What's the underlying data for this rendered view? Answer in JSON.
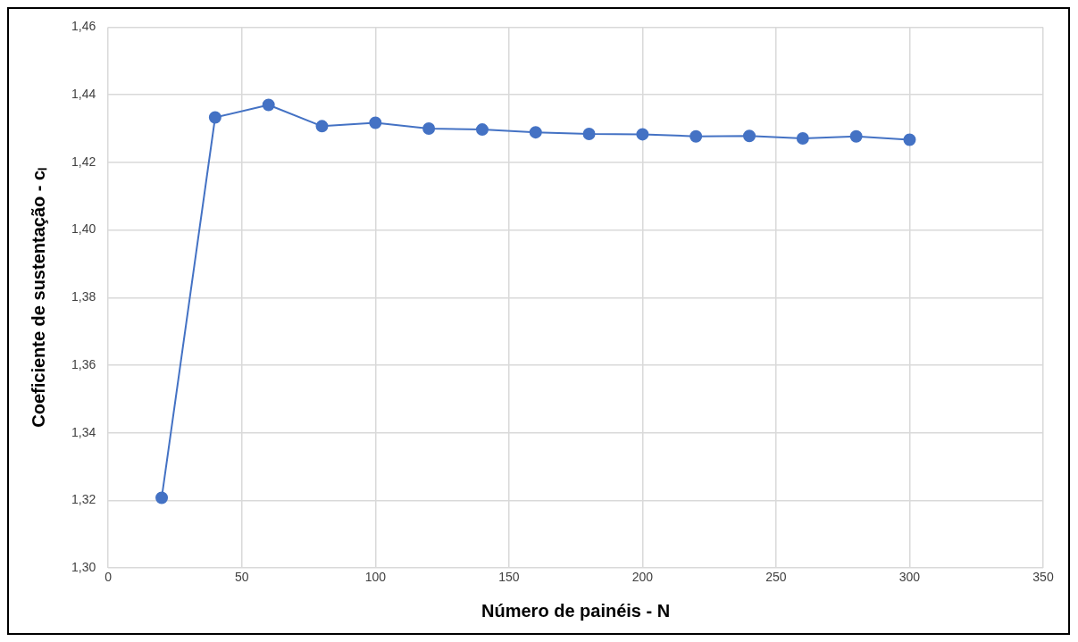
{
  "chart_data": {
    "type": "line",
    "xlabel": "Número de painéis - N",
    "ylabel": "Coeficiente de sustentação - cₗ",
    "x": [
      20,
      40,
      60,
      80,
      100,
      120,
      140,
      160,
      180,
      200,
      220,
      240,
      260,
      280,
      300
    ],
    "series": [
      {
        "color": "#4472c4",
        "values": [
          1.3208,
          1.4333,
          1.437,
          1.4307,
          1.4317,
          1.43,
          1.4297,
          1.4289,
          1.4284,
          1.4283,
          1.4277,
          1.4278,
          1.4271,
          1.4277,
          1.4267
        ]
      }
    ],
    "xlim": [
      0,
      350
    ],
    "xticks": [
      0,
      50,
      100,
      150,
      200,
      250,
      300,
      350
    ],
    "ylim": [
      1.3,
      1.46
    ],
    "yticks": [
      {
        "value": 1.3,
        "label": "1,30"
      },
      {
        "value": 1.32,
        "label": "1,32"
      },
      {
        "value": 1.34,
        "label": "1,34"
      },
      {
        "value": 1.36,
        "label": "1,36"
      },
      {
        "value": 1.38,
        "label": "1,38"
      },
      {
        "value": 1.4,
        "label": "1,40"
      },
      {
        "value": 1.42,
        "label": "1,42"
      },
      {
        "value": 1.44,
        "label": "1,44"
      },
      {
        "value": 1.46,
        "label": "1,46"
      }
    ],
    "grid": true,
    "marker": "circle",
    "legend": false
  }
}
